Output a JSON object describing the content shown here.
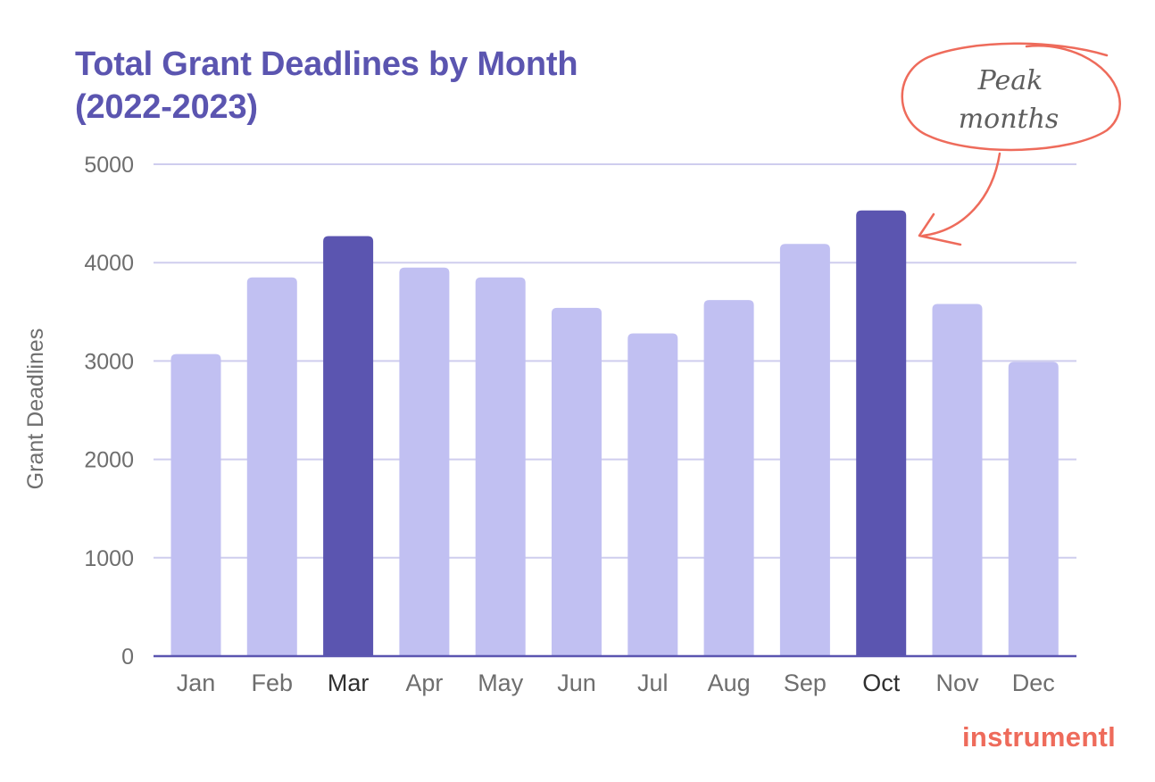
{
  "title_lines": [
    "Total Grant Deadlines by Month",
    "(2022-2023)"
  ],
  "annotation": {
    "lines": [
      "Peak",
      "months"
    ],
    "color": "#ee6b5b",
    "text_color": "#5e5e5e"
  },
  "brand": "instrumentl",
  "chart_data": {
    "type": "bar",
    "title": "Total Grant Deadlines by Month (2022-2023)",
    "xlabel": "",
    "ylabel": "Grant Deadlines",
    "categories": [
      "Jan",
      "Feb",
      "Mar",
      "Apr",
      "May",
      "Jun",
      "Jul",
      "Aug",
      "Sep",
      "Oct",
      "Nov",
      "Dec"
    ],
    "values": [
      3070,
      3850,
      4270,
      3950,
      3850,
      3540,
      3280,
      3620,
      4190,
      4530,
      3580,
      2990
    ],
    "highlighted": [
      "Mar",
      "Oct"
    ],
    "ylim": [
      0,
      5000
    ],
    "yticks": [
      0,
      1000,
      2000,
      3000,
      4000,
      5000
    ],
    "grid": true,
    "legend": "none",
    "colors": {
      "bar": "#c1c0f2",
      "highlight": "#5b55b0",
      "grid": "#cfcdee",
      "axis": "#5b55b0",
      "tick": "#6e6e6e",
      "tick_highlight": "#2f2f2f"
    }
  }
}
